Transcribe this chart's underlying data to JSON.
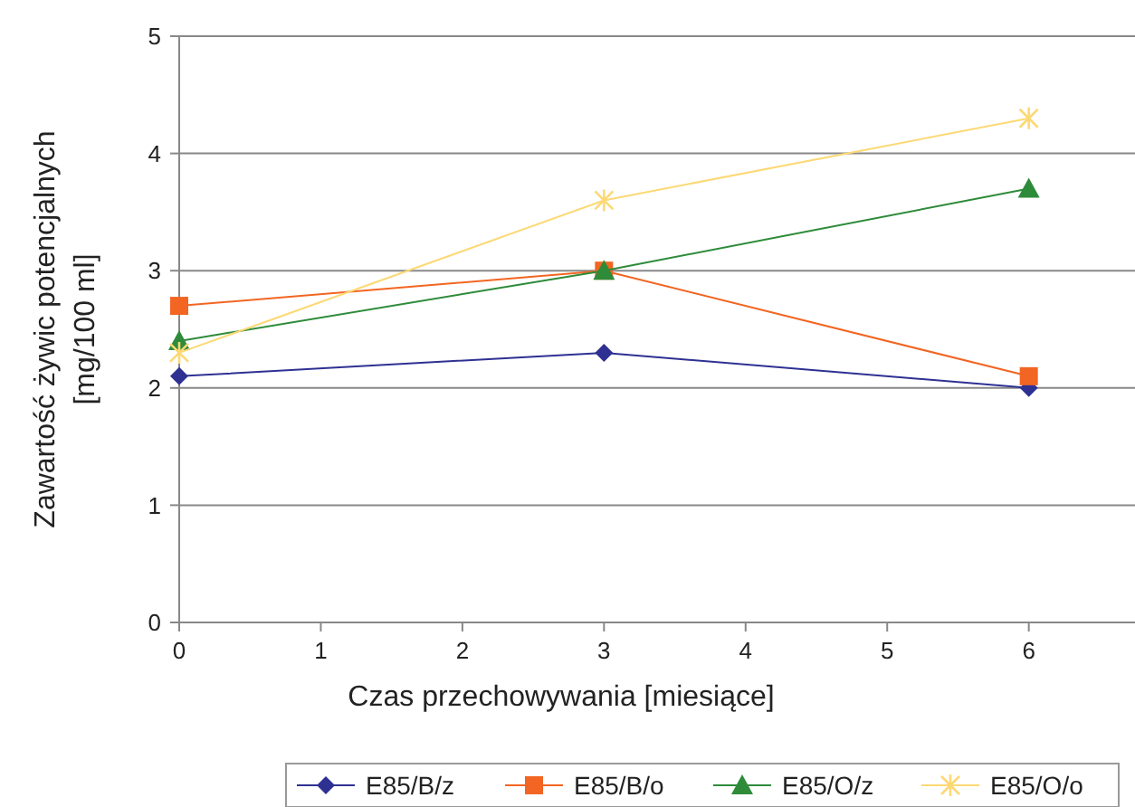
{
  "chart_data": {
    "type": "line",
    "xlabel": "Czas przechowywania [miesiące]",
    "ylabel": "Zawartość żywic potencjalnych [mg/100 ml]",
    "x": [
      0,
      3,
      6
    ],
    "xlim": [
      0,
      6.75
    ],
    "xticks": [
      0,
      1,
      2,
      3,
      4,
      5,
      6
    ],
    "ylim": [
      0,
      5
    ],
    "yticks": [
      0,
      1,
      2,
      3,
      4,
      5
    ],
    "grid": "y",
    "legend": "bottom",
    "series": [
      {
        "name": "E85/B/z",
        "color": "#2e3192",
        "marker": "diamond",
        "values": [
          2.1,
          2.3,
          2.0
        ]
      },
      {
        "name": "E85/B/o",
        "color": "#f26522",
        "marker": "square",
        "values": [
          2.7,
          3.0,
          2.1
        ]
      },
      {
        "name": "E85/O/z",
        "color": "#2e8b3a",
        "marker": "triangle",
        "values": [
          2.4,
          3.0,
          3.7
        ]
      },
      {
        "name": "E85/O/o",
        "color": "#fcd975",
        "marker": "cross",
        "values": [
          2.3,
          3.6,
          4.3
        ]
      }
    ]
  }
}
